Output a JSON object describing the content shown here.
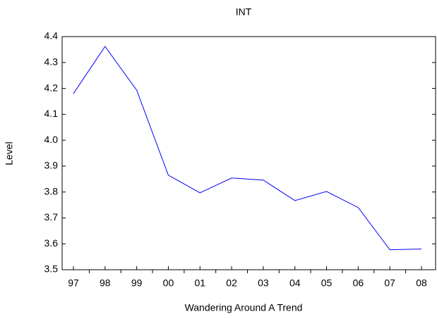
{
  "chart_data": {
    "type": "line",
    "title": "INT",
    "x_label": "Wandering Around A Trend",
    "y_label": "Level",
    "categories": [
      "97",
      "98",
      "99",
      "00",
      "01",
      "02",
      "03",
      "04",
      "05",
      "06",
      "07",
      "08"
    ],
    "series": [
      {
        "name": "INT",
        "color": "#0000ff",
        "values": [
          4.18,
          4.362,
          4.193,
          3.865,
          3.797,
          3.854,
          3.846,
          3.767,
          3.802,
          3.74,
          3.577,
          3.58
        ]
      }
    ],
    "ylim": [
      3.5,
      4.4
    ],
    "yticks": [
      3.5,
      3.6,
      3.7,
      3.8,
      3.9,
      {
        "value": 4,
        "label": "4.0"
      },
      4.1,
      4.2,
      4.3,
      4.4
    ]
  }
}
